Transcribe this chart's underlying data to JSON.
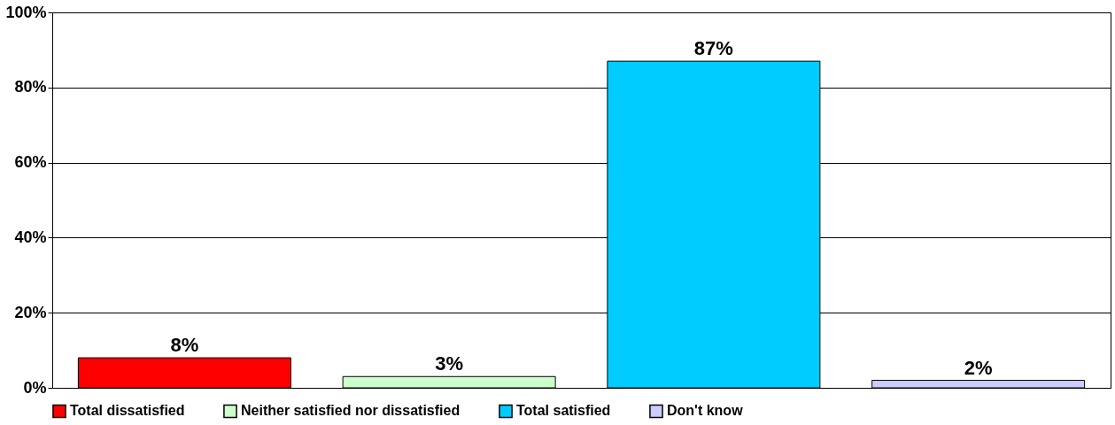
{
  "chart_data": {
    "type": "bar",
    "categories": [
      null,
      null,
      null,
      null
    ],
    "series": [
      {
        "name": "Total dissatisfied",
        "color": "#ff0000",
        "values": [
          8,
          null,
          null,
          null
        ],
        "value_labels": [
          "8%",
          null,
          null,
          null
        ]
      },
      {
        "name": "Neither satisfied nor dissatisfied",
        "color": "#ccffcc",
        "values": [
          null,
          3,
          null,
          null
        ],
        "value_labels": [
          null,
          "3%",
          null,
          null
        ]
      },
      {
        "name": "Total satisfied",
        "color": "#00ccff",
        "values": [
          null,
          null,
          87,
          null
        ],
        "value_labels": [
          null,
          null,
          "87%",
          null
        ]
      },
      {
        "name": "Don't know",
        "color": "#ccccff",
        "values": [
          null,
          null,
          null,
          2
        ],
        "value_labels": [
          null,
          null,
          null,
          "2%"
        ]
      }
    ],
    "ylim": [
      0,
      100
    ],
    "yticks": [
      {
        "value": 0,
        "label": "0%"
      },
      {
        "value": 20,
        "label": "20%"
      },
      {
        "value": 40,
        "label": "40%"
      },
      {
        "value": 60,
        "label": "60%"
      },
      {
        "value": 80,
        "label": "80%"
      },
      {
        "value": 100,
        "label": "100%"
      }
    ],
    "grid": "y",
    "legend": "bottom",
    "tick_labels": "y"
  }
}
